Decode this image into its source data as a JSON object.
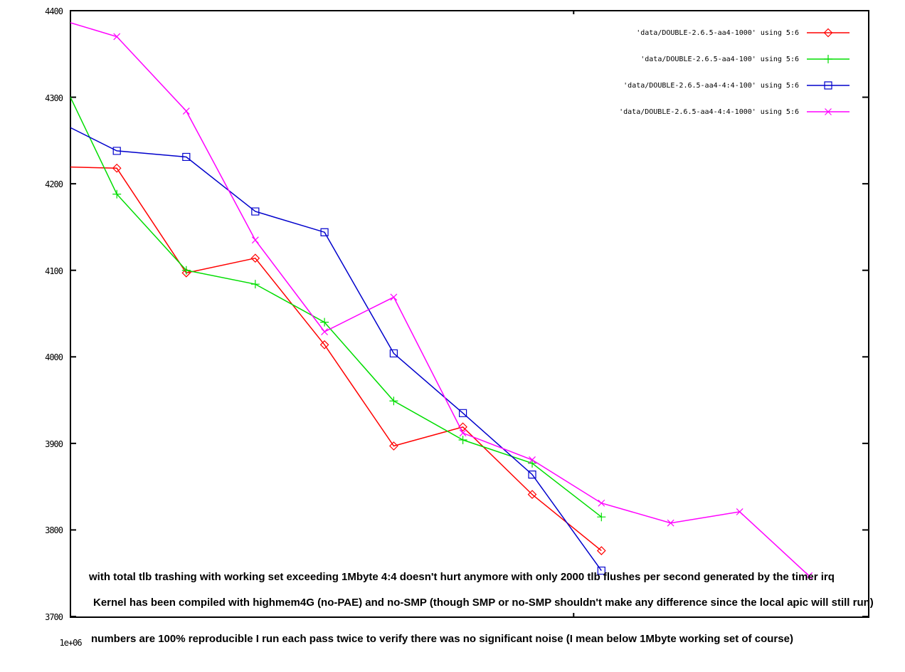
{
  "plot": {
    "background": "#ffffff",
    "axis_color": "#000000",
    "text_color": "#000000",
    "x_tick_label": "1e+06",
    "y_tick_labels": [
      "4400",
      "4300",
      "4200",
      "4100",
      "4000",
      "3900",
      "3800",
      "3700"
    ],
    "annotations": [
      "with total tlb trashing with working set exceeding 1Mbyte 4:4 doesn't hurt anymore with only 2000 tlb flushes per second generated by the timer irq",
      "Kernel has been compiled with highmem4G (no-PAE) and no-SMP (though SMP or no-SMP shouldn't make any difference since the local apic will still run)",
      "numbers are 100% reproducible I run each pass twice to verify there was no significant noise (I mean below 1Mbyte working set of course)"
    ]
  },
  "chart_data": {
    "type": "line",
    "title": "",
    "xlabel": "",
    "ylabel": "",
    "x_scale": "log10",
    "x_range": [
      1000000,
      3000000
    ],
    "y_range": [
      3700,
      4400
    ],
    "y_tick_step": 100,
    "x_ticks_labeled": [
      1000000
    ],
    "x_minor_ticks": [
      2000000
    ],
    "grid": false,
    "legend_position": "top-right inside",
    "series": [
      {
        "name": "'data/DOUBLE-2.6.5-aa4-1000' using 5:6",
        "color": "#ff0000",
        "marker": "diamond",
        "points": [
          [
            969000,
            4220
          ],
          [
            1066000,
            4218
          ],
          [
            1173000,
            4097
          ],
          [
            1290000,
            4114
          ],
          [
            1419000,
            4014
          ],
          [
            1561000,
            3897
          ],
          [
            1717000,
            3919
          ],
          [
            1889000,
            3841
          ],
          [
            2078000,
            3776
          ]
        ]
      },
      {
        "name": "'data/DOUBLE-2.6.5-aa4-100' using 5:6",
        "color": "#00dd00",
        "marker": "plus",
        "points": [
          [
            969000,
            4355
          ],
          [
            1066000,
            4188
          ],
          [
            1173000,
            4100
          ],
          [
            1290000,
            4084
          ],
          [
            1419000,
            4040
          ],
          [
            1561000,
            3949
          ],
          [
            1717000,
            3904
          ],
          [
            1889000,
            3877
          ],
          [
            2078000,
            3815
          ]
        ]
      },
      {
        "name": "'data/DOUBLE-2.6.5-aa4-4:4-100' using 5:6",
        "color": "#0000cc",
        "marker": "square",
        "points": [
          [
            969000,
            4278
          ],
          [
            1066000,
            4238
          ],
          [
            1173000,
            4231
          ],
          [
            1290000,
            4168
          ],
          [
            1419000,
            4144
          ],
          [
            1561000,
            4004
          ],
          [
            1717000,
            3935
          ],
          [
            1889000,
            3864
          ],
          [
            2078000,
            3753
          ]
        ]
      },
      {
        "name": "'data/DOUBLE-2.6.5-aa4-4:4-1000' using 5:6",
        "color": "#ff00ff",
        "marker": "x",
        "points": [
          [
            969000,
            4394
          ],
          [
            1066000,
            4370
          ],
          [
            1173000,
            4284
          ],
          [
            1290000,
            4135
          ],
          [
            1419000,
            4029
          ],
          [
            1561000,
            4069
          ],
          [
            1717000,
            3912
          ],
          [
            1889000,
            3881
          ],
          [
            2078000,
            3831
          ],
          [
            2286000,
            3808
          ],
          [
            2514000,
            3821
          ],
          [
            2766000,
            3747
          ]
        ]
      }
    ]
  }
}
